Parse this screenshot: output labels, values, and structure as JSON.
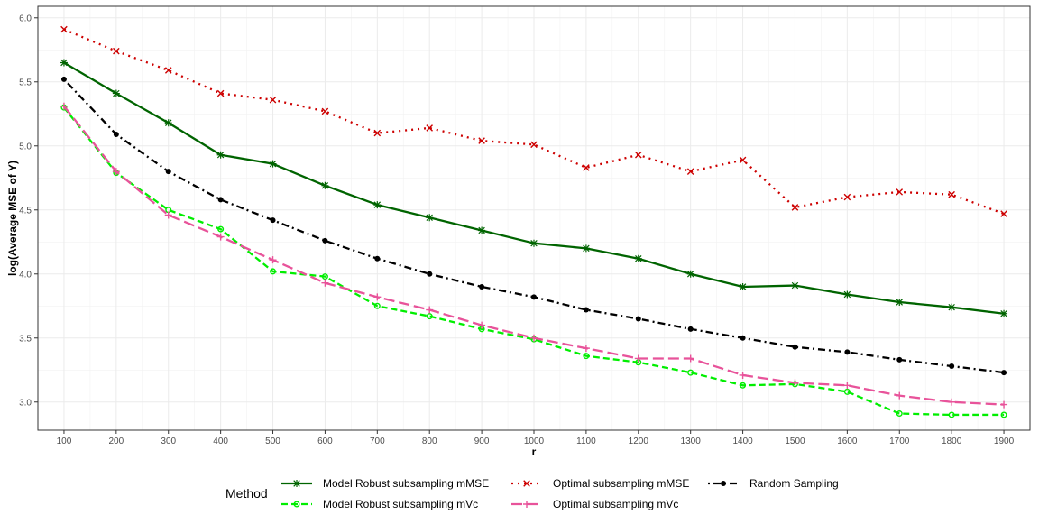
{
  "chart_data": {
    "type": "line",
    "title": "",
    "xlabel": "r",
    "ylabel": "log(Average MSE of Y)",
    "x": [
      100,
      200,
      300,
      400,
      500,
      600,
      700,
      800,
      900,
      1000,
      1100,
      1200,
      1300,
      1400,
      1500,
      1600,
      1700,
      1800,
      1900
    ],
    "x_ticks": [
      "100",
      "200",
      "300",
      "400",
      "500",
      "600",
      "700",
      "800",
      "900",
      "1000",
      "1100",
      "1200",
      "1300",
      "1400",
      "1500",
      "1600",
      "1700",
      "1800",
      "1900"
    ],
    "y_ticks": [
      "3.0",
      "3.5",
      "4.0",
      "4.5",
      "5.0",
      "5.5",
      "6.0"
    ],
    "xlim": [
      50,
      1950
    ],
    "ylim": [
      2.78,
      6.09
    ],
    "grid": true,
    "legend_position": "bottom",
    "legend_title": "Method",
    "series": [
      {
        "name": "Model Robust subsampling mMSE",
        "color": "#006400",
        "dash": "solid",
        "marker": "asterisk",
        "values": [
          5.65,
          5.41,
          5.18,
          4.93,
          4.86,
          4.69,
          4.54,
          4.44,
          4.34,
          4.24,
          4.2,
          4.12,
          4.0,
          3.9,
          3.91,
          3.84,
          3.78,
          3.74,
          3.69
        ]
      },
      {
        "name": "Model Robust subsampling mVc",
        "color": "#00ee00",
        "dash": "dashed",
        "marker": "circle-open",
        "values": [
          5.3,
          4.79,
          4.5,
          4.35,
          4.02,
          3.98,
          3.75,
          3.67,
          3.57,
          3.49,
          3.36,
          3.31,
          3.23,
          3.13,
          3.14,
          3.08,
          2.91,
          2.9,
          2.9
        ]
      },
      {
        "name": "Optimal subsampling mMSE",
        "color": "#cd0000",
        "dash": "dotted",
        "marker": "cross",
        "values": [
          5.91,
          5.74,
          5.59,
          5.41,
          5.36,
          5.27,
          5.1,
          5.14,
          5.04,
          5.01,
          4.83,
          4.93,
          4.8,
          4.89,
          4.52,
          4.6,
          4.64,
          4.62,
          4.47
        ]
      },
      {
        "name": "Optimal subsampling mVc",
        "color": "#e8539a",
        "dash": "longdash",
        "marker": "plus",
        "values": [
          5.31,
          4.8,
          4.46,
          4.29,
          4.11,
          3.93,
          3.82,
          3.72,
          3.6,
          3.5,
          3.42,
          3.34,
          3.34,
          3.21,
          3.15,
          3.13,
          3.05,
          3.0,
          2.98
        ]
      },
      {
        "name": "Random Sampling",
        "color": "#000000",
        "dash": "dotdash",
        "marker": "circle",
        "values": [
          5.52,
          5.09,
          4.8,
          4.58,
          4.42,
          4.26,
          4.12,
          4.0,
          3.9,
          3.82,
          3.72,
          3.65,
          3.57,
          3.5,
          3.43,
          3.39,
          3.33,
          3.28,
          3.23
        ]
      }
    ]
  }
}
